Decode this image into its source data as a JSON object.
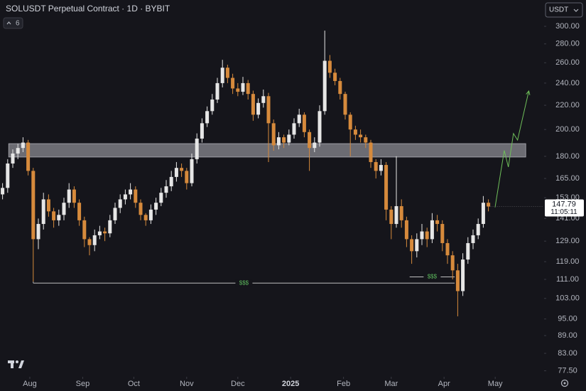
{
  "chart_data": {
    "type": "candlestick",
    "title": "SOLUSDT Perpetual Contract · 1D · BYBIT",
    "indicators": 6,
    "currency": "USDT",
    "up_color": "#e6e6e6",
    "down_color": "#d68a3c",
    "log_scale": true,
    "open": [
      155,
      159,
      175,
      182,
      186,
      190,
      170,
      130,
      138,
      152,
      145,
      140,
      143,
      150,
      158,
      150,
      140,
      130,
      127,
      132,
      134,
      133,
      140,
      147,
      152,
      155,
      158,
      150,
      143,
      140,
      146,
      150,
      156,
      160,
      166,
      172,
      170,
      162,
      178,
      193,
      205,
      215,
      225,
      240,
      255,
      245,
      235,
      232,
      240,
      230,
      212,
      222,
      228,
      205,
      188,
      194,
      190,
      196,
      205,
      212,
      198,
      186,
      190,
      215,
      262,
      250,
      242,
      230,
      212,
      200,
      196,
      194,
      190,
      176,
      170,
      174,
      146,
      138,
      148,
      140,
      130,
      124,
      130,
      134,
      130,
      140,
      138,
      128,
      122,
      115,
      106,
      120,
      128,
      132,
      138,
      150
    ],
    "high": [
      162,
      178,
      185,
      189,
      194,
      192,
      172,
      141,
      156,
      155,
      147,
      146,
      153,
      162,
      160,
      152,
      142,
      131,
      135,
      137,
      136,
      143,
      150,
      155,
      158,
      162,
      160,
      152,
      144,
      149,
      153,
      159,
      164,
      170,
      176,
      175,
      172,
      182,
      197,
      209,
      219,
      230,
      245,
      263,
      258,
      249,
      240,
      246,
      243,
      233,
      226,
      234,
      231,
      208,
      198,
      196,
      200,
      209,
      217,
      214,
      200,
      194,
      220,
      295,
      268,
      254,
      245,
      232,
      214,
      203,
      200,
      196,
      192,
      178,
      178,
      176,
      148,
      180,
      152,
      142,
      132,
      133,
      138,
      136,
      144,
      143,
      140,
      130,
      124,
      118,
      123,
      131,
      135,
      141,
      154,
      152
    ],
    "low": [
      152,
      156,
      172,
      178,
      183,
      167,
      110,
      125,
      135,
      142,
      136,
      137,
      140,
      147,
      147,
      137,
      126,
      122,
      124,
      130,
      129,
      131,
      138,
      144,
      149,
      152,
      147,
      140,
      137,
      138,
      143,
      148,
      153,
      157,
      163,
      166,
      158,
      160,
      175,
      190,
      202,
      212,
      222,
      236,
      240,
      230,
      228,
      229,
      225,
      207,
      209,
      218,
      176,
      184,
      185,
      186,
      188,
      193,
      202,
      194,
      170,
      183,
      187,
      212,
      245,
      238,
      225,
      208,
      180,
      192,
      190,
      186,
      172,
      165,
      167,
      140,
      130,
      136,
      136,
      126,
      118,
      121,
      127,
      126,
      128,
      134,
      124,
      118,
      111,
      96,
      104,
      118,
      125,
      130,
      136,
      145
    ],
    "close": [
      159,
      175,
      182,
      186,
      190,
      170,
      130,
      138,
      152,
      145,
      140,
      143,
      150,
      158,
      150,
      140,
      130,
      127,
      132,
      134,
      133,
      140,
      147,
      152,
      155,
      158,
      150,
      143,
      140,
      146,
      150,
      156,
      160,
      166,
      172,
      170,
      162,
      178,
      193,
      205,
      215,
      225,
      240,
      255,
      245,
      235,
      232,
      240,
      230,
      212,
      222,
      228,
      205,
      188,
      194,
      190,
      196,
      205,
      212,
      198,
      186,
      190,
      215,
      262,
      250,
      242,
      230,
      212,
      200,
      196,
      194,
      190,
      176,
      170,
      174,
      146,
      138,
      148,
      140,
      130,
      124,
      130,
      134,
      130,
      140,
      138,
      128,
      122,
      115,
      106,
      120,
      128,
      132,
      138,
      150,
      147.79
    ],
    "countdown": "11:05:11",
    "ylim": [
      75.7,
      332.7
    ],
    "yticks": [
      {
        "value": 300,
        "label": "300.00"
      },
      {
        "value": 280,
        "label": "280.00"
      },
      {
        "value": 260,
        "label": "260.00"
      },
      {
        "value": 240,
        "label": "240.00"
      },
      {
        "value": 220,
        "label": "220.00"
      },
      {
        "value": 200,
        "label": "200.00"
      },
      {
        "value": 180,
        "label": "180.00"
      },
      {
        "value": 165,
        "label": "165.00"
      },
      {
        "value": 153,
        "label": "153.00"
      },
      {
        "value": 141,
        "label": "141.00"
      },
      {
        "value": 129,
        "label": "129.00"
      },
      {
        "value": 119,
        "label": "119.00"
      },
      {
        "value": 111,
        "label": "111.00"
      },
      {
        "value": 103,
        "label": "103.00"
      },
      {
        "value": 95,
        "label": "95.00"
      },
      {
        "value": 89,
        "label": "89.00"
      },
      {
        "value": 83,
        "label": "83.00"
      },
      {
        "value": 77.5,
        "label": "77.50"
      }
    ],
    "xlim": [
      -0.5,
      105.75
    ],
    "xticks": [
      {
        "value": 5.33,
        "label": "Aug"
      },
      {
        "value": 15.67,
        "label": "Sep"
      },
      {
        "value": 25.67,
        "label": "Oct"
      },
      {
        "value": 36,
        "label": "Nov"
      },
      {
        "value": 46,
        "label": "Dec"
      },
      {
        "value": 56.33,
        "label": "2025"
      },
      {
        "value": 66.67,
        "label": "Feb"
      },
      {
        "value": 76,
        "label": "Mar"
      },
      {
        "value": 86.33,
        "label": "Apr"
      },
      {
        "value": 96.33,
        "label": "May"
      }
    ],
    "zone": {
      "low": 179.5,
      "high": 189.2,
      "start": 1.2,
      "end": 102.3
    },
    "liquidity": [
      {
        "label": "$$$",
        "price": 109.4,
        "start": 6,
        "end": 88.4
      },
      {
        "label": "$$$",
        "price": 112.1,
        "start": 79.6,
        "end": 88.4
      }
    ],
    "projection": {
      "x": [
        96.3,
        98.1,
        98.9,
        99.9,
        100.7,
        102.9
      ],
      "y": [
        147.3,
        184.2,
        172.6,
        196.9,
        191.9,
        232.7
      ]
    }
  }
}
